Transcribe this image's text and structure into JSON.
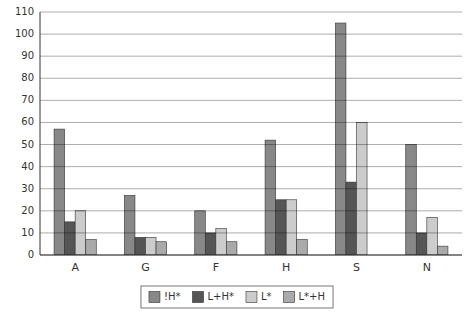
{
  "chart_data": {
    "type": "bar",
    "categories": [
      "A",
      "G",
      "F",
      "H",
      "S",
      "N"
    ],
    "series": [
      {
        "name": "!H*",
        "color": "#888888",
        "values": [
          57,
          27,
          20,
          52,
          105,
          50
        ]
      },
      {
        "name": "L+H*",
        "color": "#555555",
        "values": [
          15,
          8,
          10,
          25,
          33,
          10
        ]
      },
      {
        "name": "L*",
        "color": "#cccccc",
        "values": [
          20,
          8,
          12,
          25,
          60,
          17
        ]
      },
      {
        "name": "L*+H",
        "color": "#aaaaaa",
        "values": [
          7,
          6,
          6,
          7,
          0,
          4
        ]
      }
    ],
    "ylim": [
      0,
      110
    ],
    "yticks": [
      0,
      10,
      20,
      30,
      40,
      50,
      60,
      70,
      80,
      90,
      100,
      110
    ],
    "grid": true,
    "legend": "bottom"
  }
}
